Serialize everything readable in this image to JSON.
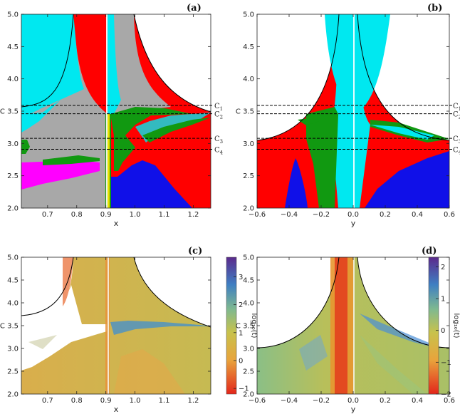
{
  "colors": {
    "gray": "#a8a8a8",
    "cyan": "#00e8f0",
    "red": "#ff0000",
    "green": "#119911",
    "blue": "#1010e8",
    "magenta": "#ff00ff",
    "yellow": "#e8e000",
    "map_low": "#e63a1e",
    "map_mid": "#d6b546",
    "map_high": "#5b2a8c"
  },
  "chart_data": [
    {
      "type": "heatmap",
      "panel_label": "(a)",
      "xlabel": "x",
      "ylabel": "C",
      "xlim": [
        0.61,
        1.26
      ],
      "ylim": [
        2.0,
        5.0
      ],
      "x_ticks": [
        "0.7",
        "0.8",
        "0.9",
        "1.0",
        "1.1",
        "1.2"
      ],
      "y_ticks": [
        "2.0",
        "2.5",
        "3.0",
        "3.5",
        "4.0",
        "4.5",
        "5.0"
      ],
      "levels": [
        {
          "name": "C",
          "sub": "1",
          "value": 3.59
        },
        {
          "name": "C",
          "sub": "2",
          "value": 3.46
        },
        {
          "name": "C",
          "sub": "3",
          "value": 3.08
        },
        {
          "name": "C",
          "sub": "4",
          "value": 2.91
        }
      ]
    },
    {
      "type": "heatmap",
      "panel_label": "(b)",
      "xlabel": "y",
      "ylabel": "C",
      "xlim": [
        -0.6,
        0.6
      ],
      "ylim": [
        2.0,
        5.0
      ],
      "x_ticks": [
        "−0.6",
        "−0.4",
        "−0.2",
        "0.0",
        "0.2",
        "0.4",
        "0.6"
      ],
      "y_ticks": [
        "2.0",
        "2.5",
        "3.0",
        "3.5",
        "4.0",
        "4.5",
        "5.0"
      ],
      "levels": [
        {
          "name": "C",
          "sub": "1",
          "value": 3.59
        },
        {
          "name": "C",
          "sub": "2",
          "value": 3.46
        },
        {
          "name": "C",
          "sub": "3",
          "value": 3.08
        },
        {
          "name": "C",
          "sub": "4",
          "value": 2.91
        }
      ]
    },
    {
      "type": "heatmap",
      "panel_label": "(c)",
      "xlabel": "x",
      "ylabel": "C",
      "xlim": [
        0.61,
        1.26
      ],
      "ylim": [
        2.0,
        5.0
      ],
      "x_ticks": [
        "0.7",
        "0.8",
        "0.9",
        "1.0",
        "1.1",
        "1.2"
      ],
      "y_ticks": [
        "2.0",
        "2.5",
        "3.0",
        "3.5",
        "4.0",
        "4.5",
        "5.0"
      ],
      "colorbar": {
        "label": "log₁₀(t)",
        "range": [
          -1.2,
          3.7
        ],
        "ticks": [
          "−1",
          "0",
          "1",
          "2",
          "3"
        ]
      }
    },
    {
      "type": "heatmap",
      "panel_label": "(d)",
      "xlabel": "y",
      "ylabel": "C",
      "xlim": [
        -0.6,
        0.6
      ],
      "ylim": [
        2.0,
        5.0
      ],
      "x_ticks": [
        "−0.6",
        "−0.4",
        "−0.2",
        "0.0",
        "0.2",
        "0.4",
        "0.6"
      ],
      "y_ticks": [
        "2.0",
        "2.5",
        "3.0",
        "3.5",
        "4.0",
        "4.5",
        "5.0"
      ],
      "colorbar": {
        "label": "log₁₀(t)",
        "range": [
          -2.0,
          2.3
        ],
        "ticks": [
          "−2",
          "−1",
          "0",
          "1",
          "2"
        ]
      }
    }
  ]
}
